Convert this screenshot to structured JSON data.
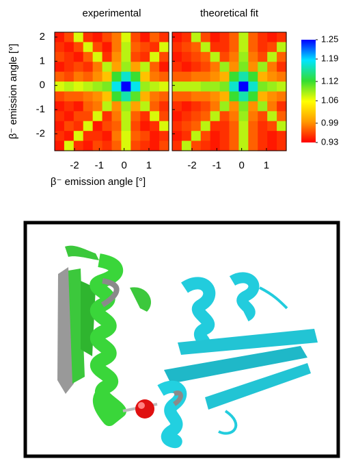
{
  "chart_data": [
    {
      "type": "heatmap",
      "title": "experimental",
      "x_label": "β⁻ emission angle [°]",
      "y_label": "β⁻ emission angle [°]",
      "xlim": [
        -2.8,
        1.8
      ],
      "ylim": [
        -2.7,
        2.2
      ],
      "xticks": [
        -2,
        -1,
        0,
        1
      ],
      "yticks": [
        -2,
        -1,
        0,
        1,
        2
      ],
      "zlim": [
        0.93,
        1.25
      ],
      "colormap": [
        "#ff0000",
        "#ff9900",
        "#ffff00",
        "#33dd33",
        "#00e5ff",
        "#0000ff"
      ],
      "z": [
        [
          0.94,
          0.96,
          1.07,
          0.95,
          0.94,
          0.96,
          0.98,
          1.07,
          0.96,
          0.94,
          0.97,
          0.95
        ],
        [
          0.95,
          0.94,
          0.96,
          1.07,
          0.96,
          0.94,
          0.98,
          1.08,
          0.97,
          0.96,
          0.95,
          1.07
        ],
        [
          0.96,
          0.95,
          0.94,
          0.97,
          1.07,
          0.95,
          0.99,
          1.08,
          0.96,
          0.95,
          1.07,
          0.96
        ],
        [
          0.94,
          0.95,
          0.96,
          0.95,
          0.98,
          1.08,
          1.0,
          1.09,
          1.0,
          1.08,
          0.97,
          0.94
        ],
        [
          0.97,
          0.96,
          0.98,
          0.97,
          0.99,
          1.02,
          1.12,
          1.17,
          1.12,
          1.02,
          0.98,
          0.97
        ],
        [
          1.07,
          1.08,
          1.07,
          1.08,
          1.09,
          1.1,
          1.18,
          1.25,
          1.18,
          1.09,
          1.08,
          1.07
        ],
        [
          0.96,
          0.97,
          0.97,
          0.98,
          0.99,
          1.02,
          1.12,
          1.16,
          1.11,
          1.01,
          0.98,
          0.97
        ],
        [
          0.94,
          0.95,
          0.94,
          0.97,
          0.98,
          1.08,
          0.99,
          1.09,
          1.0,
          1.08,
          0.97,
          0.95
        ],
        [
          0.95,
          0.94,
          0.96,
          0.96,
          1.07,
          0.95,
          0.98,
          1.08,
          0.97,
          0.95,
          1.07,
          0.96
        ],
        [
          0.94,
          0.96,
          0.95,
          1.07,
          0.94,
          0.96,
          0.97,
          1.08,
          0.96,
          0.94,
          0.95,
          1.07
        ],
        [
          0.95,
          0.94,
          1.07,
          0.95,
          0.95,
          0.94,
          0.98,
          1.07,
          0.97,
          0.96,
          0.94,
          0.95
        ],
        [
          0.94,
          1.07,
          0.95,
          0.94,
          0.96,
          0.95,
          0.97,
          1.07,
          0.96,
          0.95,
          0.94,
          0.96
        ]
      ]
    },
    {
      "type": "heatmap",
      "title": "theoretical fit",
      "xlim": [
        -2.8,
        1.8
      ],
      "ylim": [
        -2.7,
        2.2
      ],
      "xticks": [
        -2,
        -1,
        0,
        1
      ],
      "yticks": [
        -2,
        -1,
        0,
        1,
        2
      ],
      "zlim": [
        0.93,
        1.25
      ],
      "zticks": [
        0.93,
        0.99,
        1.06,
        1.12,
        1.19,
        1.25
      ],
      "colormap": [
        "#ff0000",
        "#ff9900",
        "#ffff00",
        "#33dd33",
        "#00e5ff",
        "#0000ff"
      ],
      "z": [
        [
          0.94,
          0.95,
          1.08,
          0.96,
          0.94,
          0.95,
          0.97,
          1.08,
          0.97,
          0.95,
          0.94,
          0.95
        ],
        [
          0.95,
          0.96,
          0.97,
          1.08,
          0.95,
          0.95,
          0.97,
          1.08,
          0.97,
          0.95,
          0.96,
          1.08
        ],
        [
          0.94,
          0.95,
          0.96,
          0.97,
          1.08,
          0.96,
          0.98,
          1.09,
          0.98,
          0.96,
          1.08,
          0.97
        ],
        [
          0.95,
          0.94,
          0.95,
          0.96,
          0.98,
          1.09,
          0.99,
          1.1,
          0.99,
          1.09,
          0.98,
          0.95
        ],
        [
          0.97,
          0.97,
          0.98,
          0.98,
          0.99,
          1.01,
          1.12,
          1.16,
          1.12,
          1.01,
          0.99,
          0.98
        ],
        [
          1.08,
          1.08,
          1.08,
          1.09,
          1.09,
          1.1,
          1.17,
          1.25,
          1.17,
          1.1,
          1.09,
          1.08
        ],
        [
          0.97,
          0.97,
          0.98,
          0.98,
          0.99,
          1.01,
          1.12,
          1.16,
          1.12,
          1.01,
          0.99,
          0.98
        ],
        [
          0.95,
          0.94,
          0.95,
          0.96,
          0.98,
          1.09,
          0.99,
          1.1,
          0.99,
          1.09,
          0.98,
          0.95
        ],
        [
          0.94,
          0.95,
          0.96,
          0.97,
          1.08,
          0.96,
          0.98,
          1.09,
          0.98,
          0.96,
          1.08,
          0.97
        ],
        [
          0.95,
          0.96,
          0.97,
          1.08,
          0.95,
          0.95,
          0.97,
          1.08,
          0.97,
          0.95,
          0.96,
          1.08
        ],
        [
          0.94,
          0.95,
          1.08,
          0.96,
          0.94,
          0.95,
          0.97,
          1.08,
          0.97,
          0.95,
          0.94,
          0.95
        ],
        [
          0.95,
          1.08,
          0.96,
          0.95,
          0.94,
          0.95,
          0.97,
          1.08,
          0.97,
          0.95,
          0.94,
          0.95
        ]
      ]
    }
  ]
}
